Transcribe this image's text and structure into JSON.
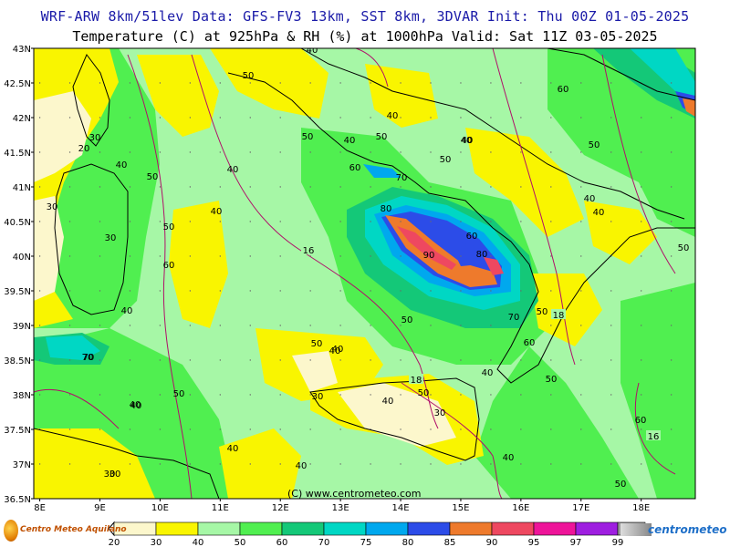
{
  "title": {
    "line1": "WRF-ARW 8km/51lev  Data: GFS-FV3 13km, SST 8km, 3DVAR  Init: Thu 00Z 01-05-2025",
    "line2": "Temperature (C) at 925hPa & RH (%) at 1000hPa  Valid: Sat 11Z 03-05-2025"
  },
  "axes": {
    "lat_labels": [
      "43N",
      "42.5N",
      "42N",
      "41.5N",
      "41N",
      "40.5N",
      "40N",
      "39.5N",
      "39N",
      "38.5N",
      "38N",
      "37.5N",
      "37N",
      "36.5N"
    ],
    "lon_labels": [
      "8E",
      "9E",
      "10E",
      "11E",
      "12E",
      "13E",
      "14E",
      "15E",
      "16E",
      "17E",
      "18E"
    ]
  },
  "credit": "(C) www.centrometeo.com",
  "legend": {
    "ticks": [
      "20",
      "30",
      "40",
      "50",
      "60",
      "70",
      "75",
      "80",
      "85",
      "90",
      "95",
      "97",
      "99"
    ],
    "colors": [
      "#fcf7cc",
      "#f9f500",
      "#a6f7a6",
      "#50ef50",
      "#14c878",
      "#00d7c4",
      "#00a8ee",
      "#2c4ce8",
      "#ee7a2c",
      "#ee4860",
      "#ee1499",
      "#9e1ee0",
      "#999999"
    ]
  },
  "rh_labels": [
    {
      "text": "50"
    },
    {
      "text": "40"
    },
    {
      "text": "40"
    },
    {
      "text": "30"
    },
    {
      "text": "20"
    },
    {
      "text": "40"
    },
    {
      "text": "50"
    },
    {
      "text": "40"
    },
    {
      "text": "30"
    },
    {
      "text": "50"
    },
    {
      "text": "30"
    },
    {
      "text": "60"
    },
    {
      "text": "40"
    },
    {
      "text": "40"
    },
    {
      "text": "50"
    },
    {
      "text": "60"
    },
    {
      "text": "70"
    },
    {
      "text": "50"
    },
    {
      "text": "40"
    },
    {
      "text": "40"
    },
    {
      "text": "50"
    },
    {
      "text": "80"
    },
    {
      "text": "40"
    },
    {
      "text": "50"
    },
    {
      "text": "70"
    },
    {
      "text": "90"
    },
    {
      "text": "60"
    },
    {
      "text": "80"
    },
    {
      "text": "50"
    },
    {
      "text": "70"
    },
    {
      "text": "50"
    },
    {
      "text": "60"
    },
    {
      "text": "50"
    },
    {
      "text": "40"
    },
    {
      "text": "50"
    },
    {
      "text": "40"
    },
    {
      "text": "30"
    },
    {
      "text": "40"
    },
    {
      "text": "30"
    },
    {
      "text": "40"
    },
    {
      "text": "30"
    },
    {
      "text": "50"
    },
    {
      "text": "40"
    },
    {
      "text": "40"
    },
    {
      "text": "40"
    },
    {
      "text": "60"
    },
    {
      "text": "40"
    },
    {
      "text": "50"
    },
    {
      "text": "60"
    },
    {
      "text": "40"
    },
    {
      "text": "50"
    },
    {
      "text": "50"
    },
    {
      "text": "40"
    },
    {
      "text": "30"
    },
    {
      "text": "40"
    },
    {
      "text": "70"
    }
  ],
  "temp_labels": [
    {
      "text": "16"
    },
    {
      "text": "18"
    },
    {
      "text": "18"
    },
    {
      "text": "16"
    }
  ],
  "logos": {
    "left": "Centro Meteo Aquilano",
    "right": "centrometeo"
  }
}
